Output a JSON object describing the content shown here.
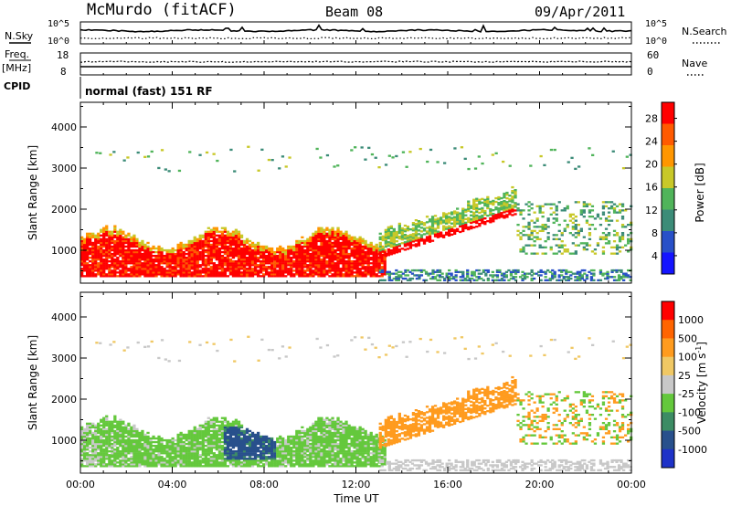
{
  "header": {
    "station": "McMurdo (fitACF)",
    "beam": "Beam 08",
    "date": "09/Apr/2011"
  },
  "top_panels": {
    "nsky_label": "N.Sky",
    "nsearch_label": "N.Search",
    "noise_ticks_left": [
      "10^5",
      "10^0"
    ],
    "noise_ticks_right": [
      "10^5",
      "10^0"
    ],
    "freq_label": "Freq.",
    "freq_unit": "[MHz]",
    "freq_ticks": [
      "18",
      "8"
    ],
    "nave_label": "Nave",
    "nave_ticks": [
      "60",
      "0"
    ],
    "cpid_label": "CPID",
    "cpid_value": "normal (fast) 151 RF"
  },
  "chart_data": [
    {
      "type": "heatmap",
      "title": "",
      "xlabel": "Time UT",
      "ylabel": "Slant Range [km]",
      "x_ticks": [
        "00:00",
        "04:00",
        "08:00",
        "12:00",
        "16:00",
        "20:00",
        "00:00"
      ],
      "xlim": [
        "00:00",
        "24:00"
      ],
      "y_ticks": [
        1000,
        2000,
        3000,
        4000
      ],
      "ylim": [
        200,
        4600
      ],
      "colorbar": {
        "label": "Power [dB]",
        "ticks": [
          4,
          8,
          12,
          16,
          20,
          24,
          28
        ],
        "range": [
          0,
          30
        ],
        "colors": [
          "#1414ff",
          "#2850c8",
          "#3c8c78",
          "#50b45a",
          "#c8c828",
          "#ff9600",
          "#ff5a00",
          "#ff0000"
        ]
      }
    },
    {
      "type": "heatmap",
      "title": "",
      "xlabel": "Time UT",
      "ylabel": "Slant Range [km]",
      "x_ticks": [
        "00:00",
        "04:00",
        "08:00",
        "12:00",
        "16:00",
        "20:00",
        "00:00"
      ],
      "xlim": [
        "00:00",
        "24:00"
      ],
      "y_ticks": [
        1000,
        2000,
        3000,
        4000
      ],
      "ylim": [
        200,
        4600
      ],
      "colorbar": {
        "label": "Velocity [m s^-1]",
        "ticks": [
          1000,
          500,
          100,
          25,
          -25,
          -100,
          -500,
          -1000
        ],
        "colors": [
          "#1e32c8",
          "#28508c",
          "#3c8c64",
          "#64c83c",
          "#c8c8c8",
          "#f0c864",
          "#ff9b1e",
          "#ff6400",
          "#ff0000"
        ]
      }
    }
  ]
}
